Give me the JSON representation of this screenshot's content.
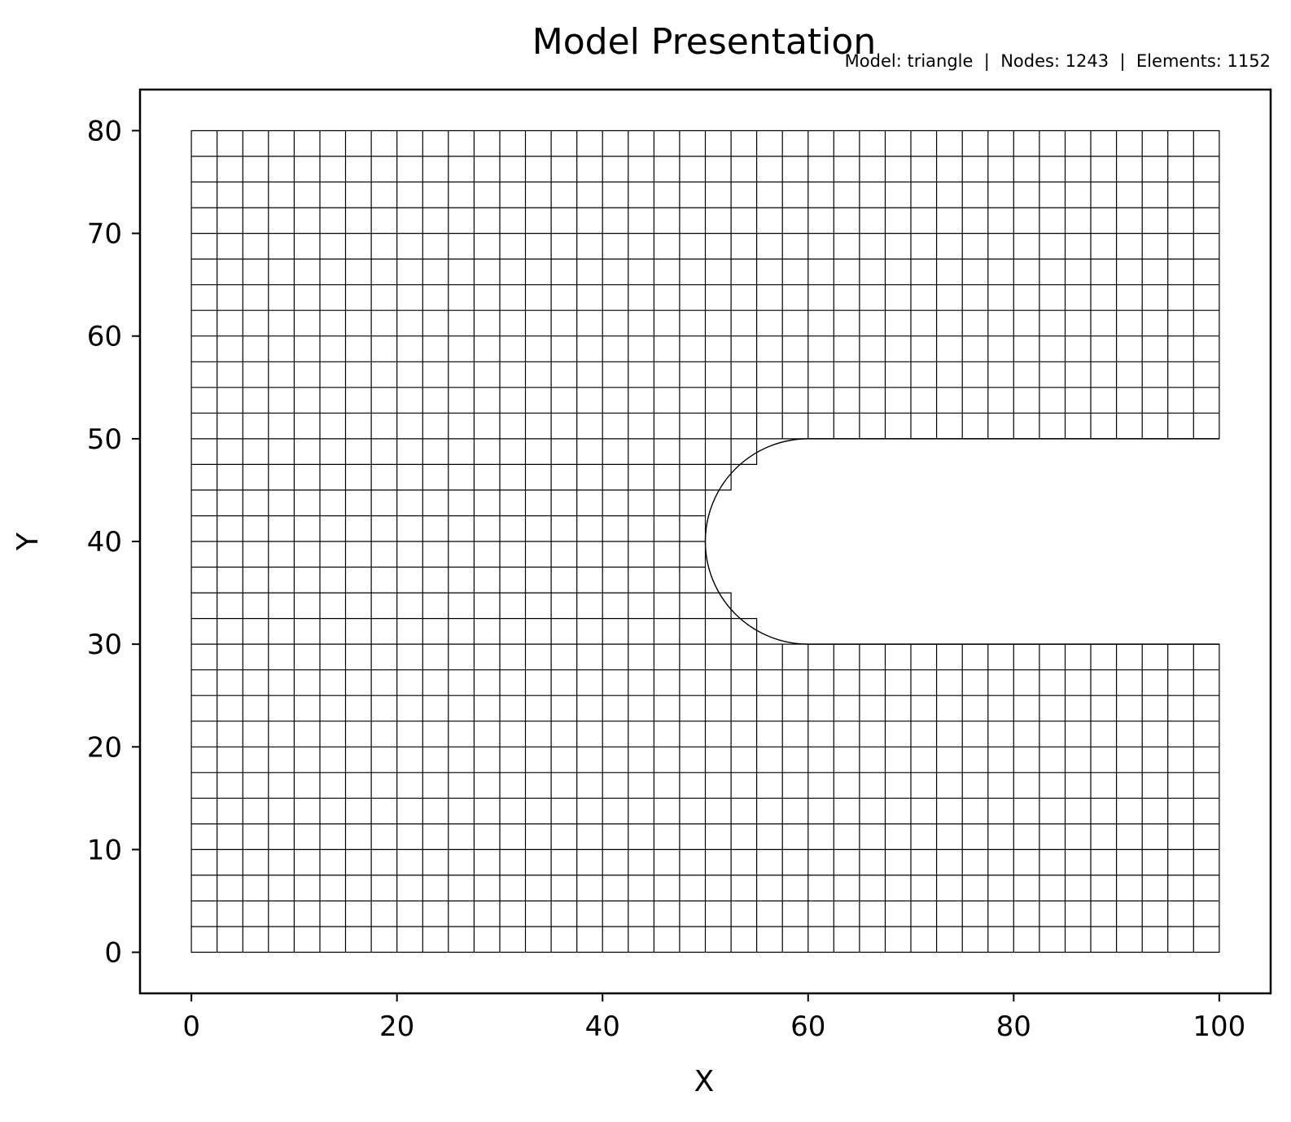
{
  "chart_data": {
    "type": "mesh",
    "title": "Model Presentation",
    "subtitle": "Model: triangle  |  Nodes: 1243  |  Elements: 1152",
    "xlabel": "X",
    "ylabel": "Y",
    "xlim": [
      -5,
      105
    ],
    "ylim": [
      -4,
      84
    ],
    "xticks": [
      0,
      20,
      40,
      60,
      80,
      100
    ],
    "yticks": [
      0,
      10,
      20,
      30,
      40,
      50,
      60,
      70,
      80
    ],
    "grid": false,
    "line_color": "#000000",
    "domain": {
      "outer_rect": [
        0,
        0,
        100,
        80
      ],
      "slot_y": [
        30,
        50
      ],
      "slot_x_start": 60,
      "slot_end_center": [
        60,
        40
      ],
      "slot_end_radius": 10,
      "grid_step": 2.5
    }
  }
}
